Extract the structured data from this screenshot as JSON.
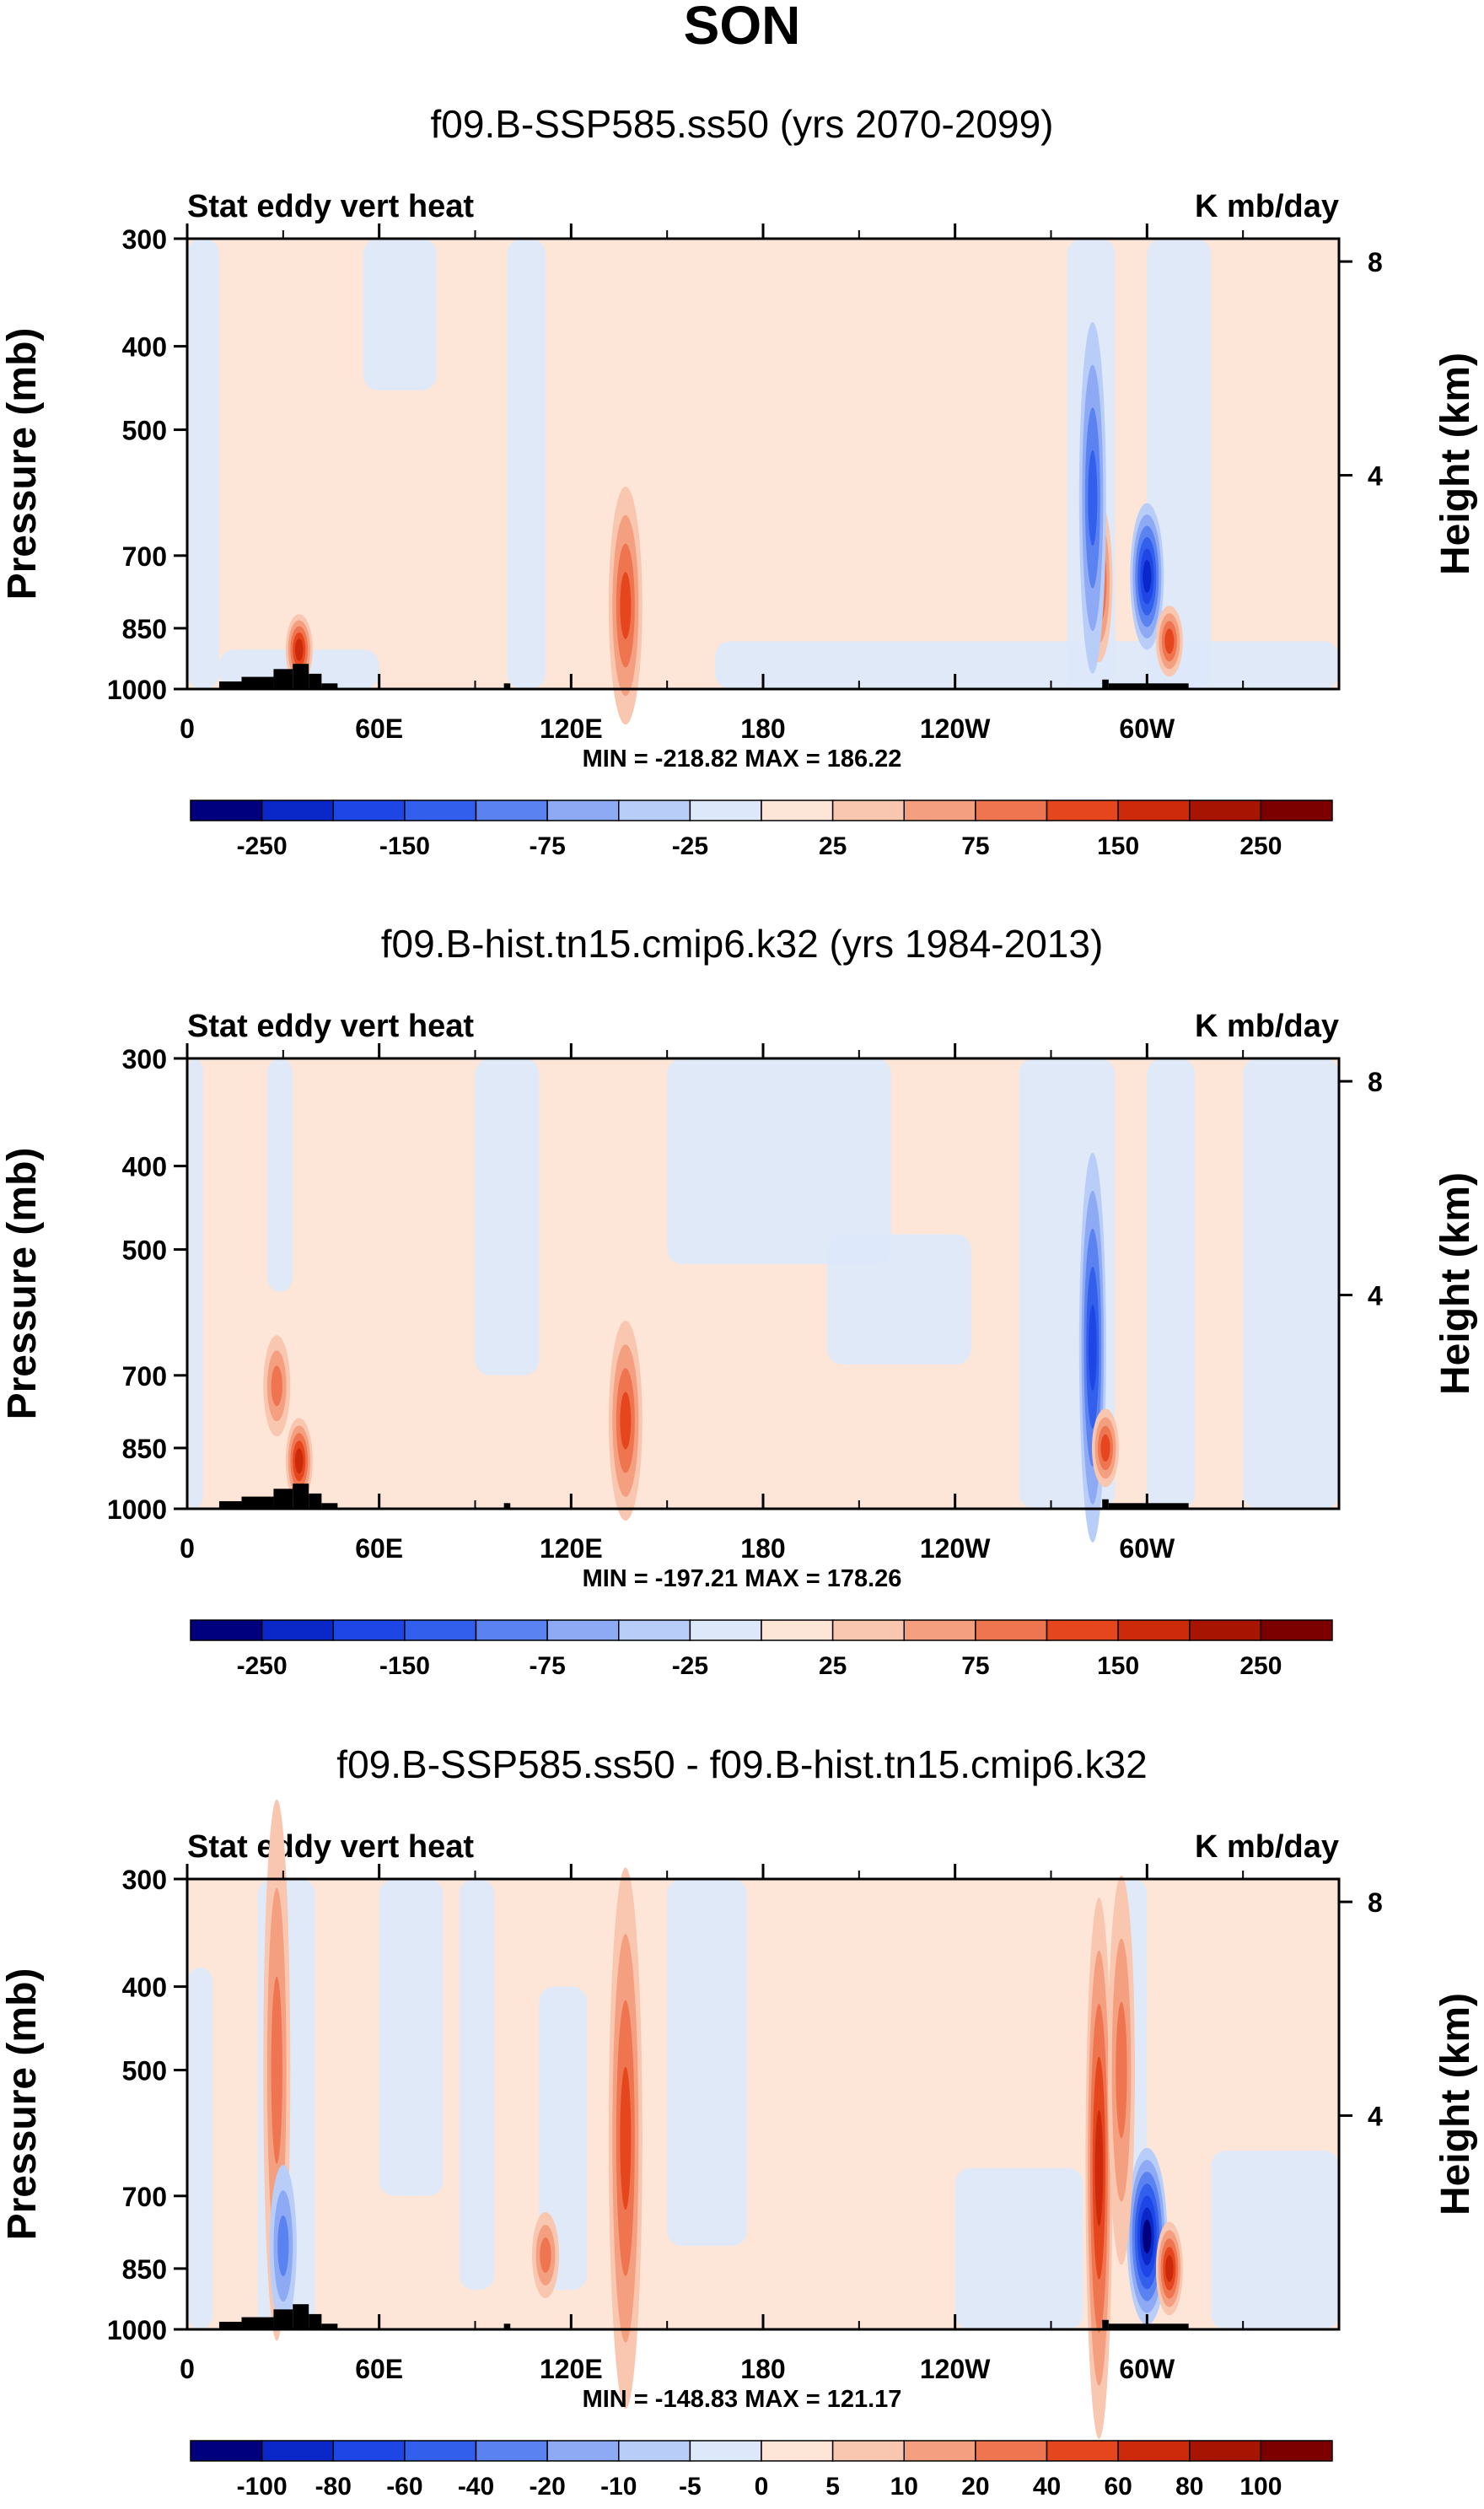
{
  "figure": {
    "title": "SON"
  },
  "colors": {
    "diverging": [
      "#00007f",
      "#0a28c8",
      "#1e46e6",
      "#325fec",
      "#5a82f0",
      "#8eaaf5",
      "#b8cdf8",
      "#dde9fb",
      "#fde6d8",
      "#f9c6b0",
      "#f4a080",
      "#ee7550",
      "#e6461e",
      "#cc2a0a",
      "#a81402",
      "#7d0000"
    ],
    "land": "#000000"
  },
  "chart_data": [
    {
      "type": "heatmap",
      "title": "f09.B-SSP585.ss50 (yrs 2070-2099)",
      "left_label": "Stat eddy vert heat",
      "right_label": "K mb/day",
      "ylabel": "Pressure (mb)",
      "ylabel_right": "Height (km)",
      "x_ticks": [
        "0",
        "60E",
        "120E",
        "180",
        "120W",
        "60W"
      ],
      "x_tick_values": [
        0,
        60,
        120,
        180,
        240,
        300
      ],
      "xlim": [
        0,
        360
      ],
      "y_ticks": [
        "300",
        "400",
        "500",
        "700",
        "850",
        "1000"
      ],
      "y_tick_values": [
        300,
        400,
        500,
        700,
        850,
        1000
      ],
      "ylim": [
        1000,
        300
      ],
      "height_ticks": [
        "4",
        "8"
      ],
      "height_tick_values": [
        4,
        8
      ],
      "stats": "MIN = -218.82   MAX = 186.22",
      "colorbar_labels": [
        "-250",
        "-150",
        "-75",
        "-25",
        "25",
        "75",
        "150",
        "250"
      ],
      "colorbar_label_positions": [
        1,
        3,
        5,
        7,
        9,
        11,
        13,
        15
      ],
      "features": [
        {
          "lon": 137,
          "p": 800,
          "width": 3,
          "amp": 1.0,
          "sign": 1,
          "depth": 300
        },
        {
          "lon": 35,
          "p": 900,
          "width": 2,
          "amp": 1.3,
          "sign": 1,
          "depth": 80
        },
        {
          "lon": 285,
          "p": 750,
          "width": 2,
          "amp": 1.1,
          "sign": 1,
          "depth": 200
        },
        {
          "lon": 300,
          "p": 740,
          "width": 3,
          "amp": 1.6,
          "sign": -1,
          "depth": 180
        },
        {
          "lon": 307,
          "p": 880,
          "width": 2,
          "amp": 1.0,
          "sign": 1,
          "depth": 80
        },
        {
          "lon": 283,
          "p": 600,
          "width": 2,
          "amp": 0.9,
          "sign": -1,
          "depth": 450
        }
      ]
    },
    {
      "type": "heatmap",
      "title": "f09.B-hist.tn15.cmip6.k32 (yrs 1984-2013)",
      "left_label": "Stat eddy vert heat",
      "right_label": "K mb/day",
      "ylabel": "Pressure (mb)",
      "ylabel_right": "Height (km)",
      "x_ticks": [
        "0",
        "60E",
        "120E",
        "180",
        "120W",
        "60W"
      ],
      "x_tick_values": [
        0,
        60,
        120,
        180,
        240,
        300
      ],
      "xlim": [
        0,
        360
      ],
      "y_ticks": [
        "300",
        "400",
        "500",
        "700",
        "850",
        "1000"
      ],
      "y_tick_values": [
        300,
        400,
        500,
        700,
        850,
        1000
      ],
      "ylim": [
        1000,
        300
      ],
      "height_ticks": [
        "4",
        "8"
      ],
      "height_tick_values": [
        4,
        8
      ],
      "stats": "MIN = -197.21   MAX = 178.26",
      "colorbar_labels": [
        "-250",
        "-150",
        "-75",
        "-25",
        "25",
        "75",
        "150",
        "250"
      ],
      "colorbar_label_positions": [
        1,
        3,
        5,
        7,
        9,
        11,
        13,
        15
      ],
      "features": [
        {
          "lon": 137,
          "p": 790,
          "width": 3,
          "amp": 0.9,
          "sign": 1,
          "depth": 250
        },
        {
          "lon": 35,
          "p": 880,
          "width": 2,
          "amp": 1.2,
          "sign": 1,
          "depth": 100
        },
        {
          "lon": 28,
          "p": 720,
          "width": 2,
          "amp": 0.8,
          "sign": 1,
          "depth": 120
        },
        {
          "lon": 283,
          "p": 650,
          "width": 2,
          "amp": 1.2,
          "sign": -1,
          "depth": 500
        },
        {
          "lon": 287,
          "p": 850,
          "width": 2,
          "amp": 1.1,
          "sign": 1,
          "depth": 90
        }
      ]
    },
    {
      "type": "heatmap",
      "title": "f09.B-SSP585.ss50 - f09.B-hist.tn15.cmip6.k32",
      "left_label": "Stat eddy vert heat",
      "right_label": "K mb/day",
      "ylabel": "Pressure (mb)",
      "ylabel_right": "Height (km)",
      "x_ticks": [
        "0",
        "60E",
        "120E",
        "180",
        "120W",
        "60W"
      ],
      "x_tick_values": [
        0,
        60,
        120,
        180,
        240,
        300
      ],
      "xlim": [
        0,
        360
      ],
      "y_ticks": [
        "300",
        "400",
        "500",
        "700",
        "850",
        "1000"
      ],
      "y_tick_values": [
        300,
        400,
        500,
        700,
        850,
        1000
      ],
      "ylim": [
        1000,
        300
      ],
      "height_ticks": [
        "4",
        "8"
      ],
      "height_tick_values": [
        4,
        8
      ],
      "stats": "MIN = -148.83   MAX = 121.17",
      "colorbar_labels": [
        "-100",
        "-80",
        "-60",
        "-40",
        "-20",
        "-10",
        "-5",
        "0",
        "5",
        "10",
        "20",
        "40",
        "60",
        "80",
        "100"
      ],
      "colorbar_label_positions": [
        1,
        2,
        3,
        4,
        5,
        6,
        7,
        8,
        9,
        10,
        11,
        12,
        13,
        14,
        15
      ],
      "features": [
        {
          "lon": 137,
          "p": 600,
          "width": 3,
          "amp": 0.9,
          "sign": 1,
          "depth": 700
        },
        {
          "lon": 28,
          "p": 500,
          "width": 2,
          "amp": 0.8,
          "sign": 1,
          "depth": 700
        },
        {
          "lon": 30,
          "p": 800,
          "width": 2,
          "amp": 0.8,
          "sign": -1,
          "depth": 200
        },
        {
          "lon": 285,
          "p": 650,
          "width": 2,
          "amp": 1.3,
          "sign": 1,
          "depth": 700
        },
        {
          "lon": 300,
          "p": 780,
          "width": 4,
          "amp": 1.7,
          "sign": -1,
          "depth": 220
        },
        {
          "lon": 292,
          "p": 500,
          "width": 2,
          "amp": 0.8,
          "sign": 1,
          "depth": 500
        },
        {
          "lon": 307,
          "p": 850,
          "width": 2,
          "amp": 1.3,
          "sign": 1,
          "depth": 110
        },
        {
          "lon": 112,
          "p": 820,
          "width": 2,
          "amp": 0.7,
          "sign": 1,
          "depth": 100
        }
      ]
    }
  ]
}
